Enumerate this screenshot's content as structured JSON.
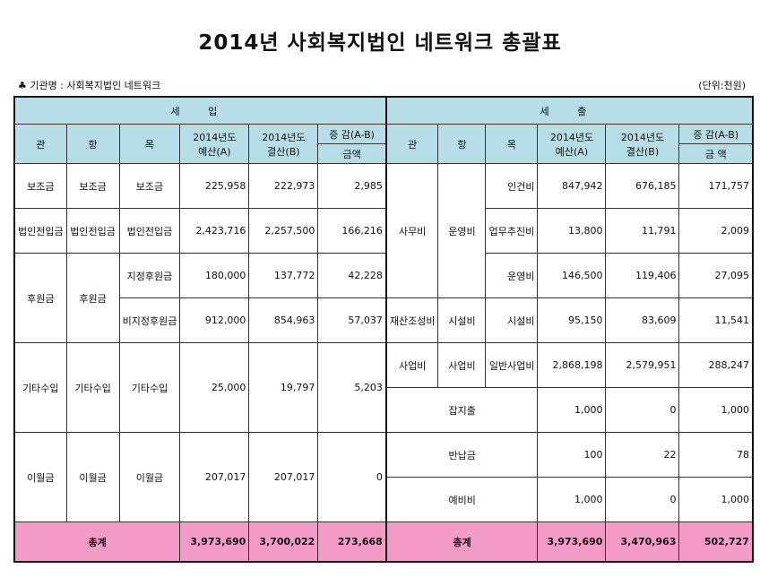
{
  "title": "2014년 사회복지법인 네트워크 총괄표",
  "org_line": "♣ 기관명 : 사회복지법인 네트워크",
  "unit": "(단위:천원)",
  "headers": {
    "income": "세 입",
    "expense": "세 출",
    "gwan": "관",
    "hang": "항",
    "mok": "목",
    "budget": "2014년도\n예산(A)",
    "settle": "2014년도\n결산(B)",
    "diff": "증 감(A-B)",
    "amount_l": "금액",
    "amount_r": "금 액"
  },
  "income": {
    "r1": {
      "gwan": "보조금",
      "hang": "보조금",
      "mok": "보조금",
      "a": "225,958",
      "b": "222,973",
      "d": "2,985"
    },
    "r2": {
      "gwan": "법인전입금",
      "hang": "법인전입금",
      "mok": "법인전입금",
      "a": "2,423,716",
      "b": "2,257,500",
      "d": "166,216"
    },
    "r3": {
      "gwan": "후원금",
      "hang": "후원금",
      "mok1": "지정후원금",
      "a1": "180,000",
      "b1": "137,772",
      "d1": "42,228",
      "mok2": "비지정후원금",
      "a2": "912,000",
      "b2": "854,963",
      "d2": "57,037"
    },
    "r4": {
      "gwan": "기타수입",
      "hang": "기타수입",
      "mok": "기타수입",
      "a": "25,000",
      "b": "19,797",
      "d": "5,203"
    },
    "r5": {
      "gwan": "이월금",
      "hang": "이월금",
      "mok": "이월금",
      "a": "207,017",
      "b": "207,017",
      "d": "0"
    }
  },
  "expense": {
    "g1": "사무비",
    "h1": "운영비",
    "e1": {
      "mok": "인건비",
      "a": "847,942",
      "b": "676,185",
      "d": "171,757"
    },
    "e2": {
      "mok": "업무추진비",
      "a": "13,800",
      "b": "11,791",
      "d": "2,009"
    },
    "e3": {
      "mok": "운영비",
      "a": "146,500",
      "b": "119,406",
      "d": "27,095"
    },
    "e4": {
      "gwan": "재산조성비",
      "hang": "시설비",
      "mok": "시설비",
      "a": "95,150",
      "b": "83,609",
      "d": "11,541"
    },
    "e5": {
      "gwan": "사업비",
      "hang": "사업비",
      "mok": "일반사업비",
      "a": "2,868,198",
      "b": "2,579,951",
      "d": "288,247"
    },
    "e6": {
      "label": "잡지출",
      "a": "1,000",
      "b": "0",
      "d": "1,000"
    },
    "e7": {
      "label": "반납금",
      "a": "100",
      "b": "22",
      "d": "78"
    },
    "e8": {
      "label": "예비비",
      "a": "1,000",
      "b": "0",
      "d": "1,000"
    }
  },
  "total": {
    "label": "총계",
    "in_a": "3,973,690",
    "in_b": "3,700,022",
    "in_d": "273,668",
    "ex_a": "3,973,690",
    "ex_b": "3,470,963",
    "ex_d": "502,727"
  }
}
